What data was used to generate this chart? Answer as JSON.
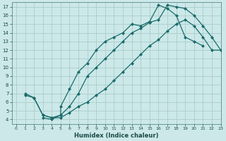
{
  "title": "",
  "xlabel": "Humidex (Indice chaleur)",
  "bg_color": "#cce8e8",
  "grid_color": "#aacccc",
  "line_color": "#1a6b6b",
  "xlim": [
    -0.5,
    23
  ],
  "ylim": [
    3.5,
    17.5
  ],
  "xticks": [
    0,
    1,
    2,
    3,
    4,
    5,
    6,
    7,
    8,
    9,
    10,
    11,
    12,
    13,
    14,
    15,
    16,
    17,
    18,
    19,
    20,
    21,
    22,
    23
  ],
  "yticks": [
    4,
    5,
    6,
    7,
    8,
    9,
    10,
    11,
    12,
    13,
    14,
    15,
    16,
    17
  ],
  "curve1_x": [
    1,
    2,
    3,
    4,
    5,
    5,
    6,
    7,
    8,
    9,
    10,
    11,
    12,
    13,
    14,
    15,
    16,
    17,
    18,
    19,
    20,
    21
  ],
  "curve1_y": [
    7,
    6.5,
    4.5,
    4.2,
    4.5,
    5.5,
    7.5,
    9.5,
    10.5,
    12,
    13,
    13.5,
    14,
    15,
    14.8,
    15.3,
    17.2,
    16.8,
    16.0,
    13.5,
    13.0,
    12.5
  ],
  "curve2_x": [
    1,
    2,
    3,
    4,
    5,
    6,
    7,
    8,
    9,
    10,
    11,
    12,
    13,
    14,
    15,
    16,
    17,
    18,
    19,
    20,
    21,
    22,
    23
  ],
  "curve2_y": [
    6.8,
    6.5,
    4.5,
    4.2,
    4.2,
    4.8,
    5.5,
    6.0,
    6.8,
    7.5,
    8.5,
    9.5,
    10.5,
    11.5,
    12.5,
    13.2,
    14.2,
    15.0,
    15.5,
    14.8,
    13.5,
    12.0,
    12.0
  ],
  "curve3_x": [
    3,
    4,
    5,
    6,
    7,
    8,
    9,
    10,
    11,
    12,
    13,
    14,
    15,
    16,
    17,
    18,
    19,
    20,
    21,
    22,
    23
  ],
  "curve3_y": [
    4.2,
    4.0,
    4.5,
    5.5,
    7.0,
    9.0,
    10.0,
    11.0,
    12.0,
    13.0,
    14.0,
    14.5,
    15.2,
    15.5,
    17.2,
    17.0,
    16.8,
    16.0,
    14.8,
    13.5,
    12.0
  ]
}
